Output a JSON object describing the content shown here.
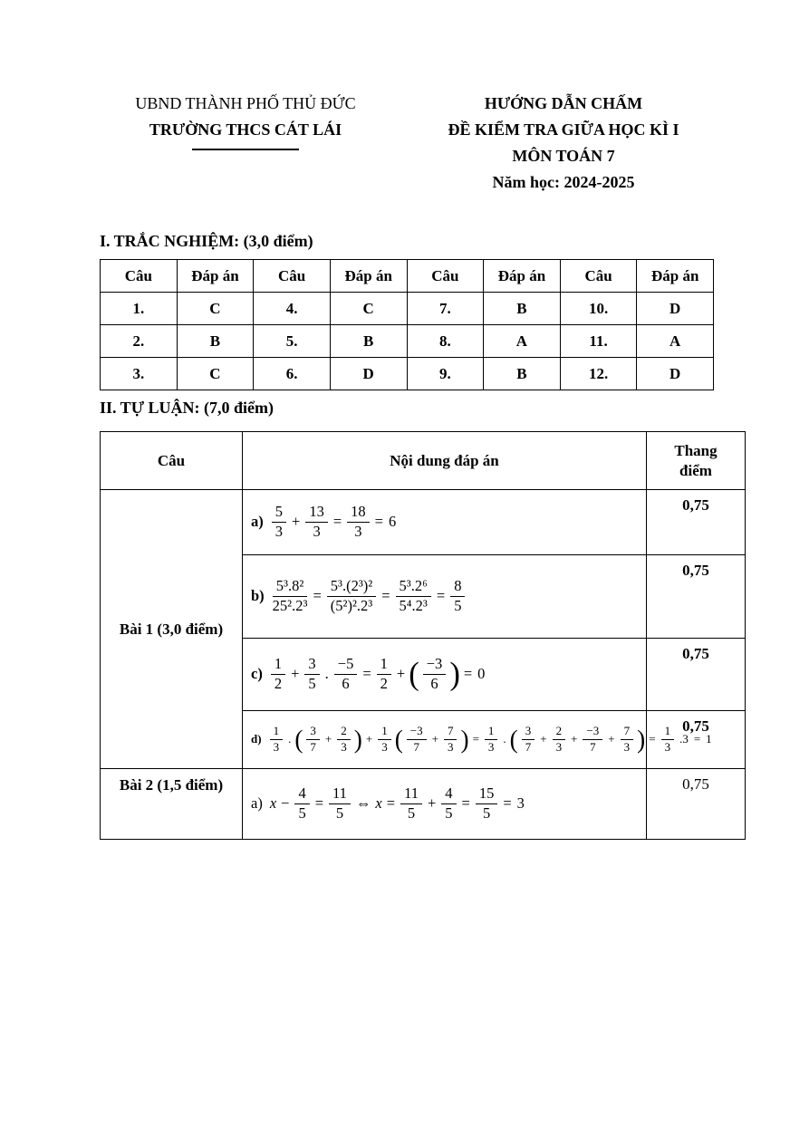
{
  "header": {
    "left": {
      "authority": "UBND THÀNH PHỐ THỦ ĐỨC",
      "school": "TRƯỜNG THCS CÁT LÁI"
    },
    "right": {
      "title": "HƯỚNG DẪN CHẤM",
      "subtitle": "ĐỀ KIỂM TRA GIỮA HỌC KÌ I",
      "subject": "MÔN TOÁN 7",
      "year": "Năm học: 2024-2025"
    }
  },
  "multiple_choice": {
    "heading": "I. TRẮC NGHIỆM: (3,0 điểm)",
    "header_row": [
      "Câu",
      "Đáp án",
      "Câu",
      "Đáp án",
      "Câu",
      "Đáp án",
      "Câu",
      "Đáp án"
    ],
    "rows": [
      [
        "1.",
        "C",
        "4.",
        "C",
        "7.",
        "B",
        "10.",
        "D"
      ],
      [
        "2.",
        "B",
        "5.",
        "B",
        "8.",
        "A",
        "11.",
        "A"
      ],
      [
        "3.",
        "C",
        "6.",
        "D",
        "9.",
        "B",
        "12.",
        "D"
      ]
    ]
  },
  "essay": {
    "heading": "II. TỰ LUẬN: (7,0 điểm)",
    "columns": {
      "question": "Câu",
      "content": "Nội dung đáp án",
      "score": "Thang điểm"
    },
    "groups": [
      {
        "title": "Bài 1 (3,0 điểm)",
        "rows": [
          {
            "label": "a)",
            "label_bold": true,
            "score": "0,75",
            "score_bold": true,
            "tokens": [
              {
                "t": "frac",
                "n": "5",
                "d": "3"
              },
              {
                "t": "txt",
                "v": "+"
              },
              {
                "t": "frac",
                "n": "13",
                "d": "3"
              },
              {
                "t": "txt",
                "v": "="
              },
              {
                "t": "frac",
                "n": "18",
                "d": "3"
              },
              {
                "t": "txt",
                "v": "="
              },
              {
                "t": "txt",
                "v": "6"
              }
            ]
          },
          {
            "label": "b)",
            "label_bold": true,
            "score": "0,75",
            "score_bold": true,
            "tokens": [
              {
                "t": "frac",
                "n": "5³.8²",
                "d": "25².2³"
              },
              {
                "t": "txt",
                "v": "="
              },
              {
                "t": "frac",
                "n": "5³.(2³)²",
                "d": "(5²)².2³"
              },
              {
                "t": "txt",
                "v": "="
              },
              {
                "t": "frac",
                "n": "5³.2⁶",
                "d": "5⁴.2³"
              },
              {
                "t": "txt",
                "v": "="
              },
              {
                "t": "frac",
                "n": "8",
                "d": "5"
              }
            ]
          },
          {
            "label": "c)",
            "label_bold": true,
            "score": "0,75",
            "score_bold": true,
            "tokens": [
              {
                "t": "frac",
                "n": "1",
                "d": "2"
              },
              {
                "t": "txt",
                "v": "+"
              },
              {
                "t": "frac",
                "n": "3",
                "d": "5"
              },
              {
                "t": "txt",
                "v": "."
              },
              {
                "t": "frac",
                "n": "−5",
                "d": "6"
              },
              {
                "t": "txt",
                "v": "="
              },
              {
                "t": "frac",
                "n": "1",
                "d": "2"
              },
              {
                "t": "txt",
                "v": "+"
              },
              {
                "t": "lp"
              },
              {
                "t": "frac",
                "n": "−3",
                "d": "6"
              },
              {
                "t": "rp"
              },
              {
                "t": "txt",
                "v": "="
              },
              {
                "t": "txt",
                "v": "0"
              }
            ]
          },
          {
            "label": "d)",
            "label_bold": true,
            "score": "0,75",
            "score_bold": true,
            "compact": true,
            "tokens": [
              {
                "t": "frac",
                "n": "1",
                "d": "3"
              },
              {
                "t": "txt",
                "v": "."
              },
              {
                "t": "lp"
              },
              {
                "t": "frac",
                "n": "3",
                "d": "7"
              },
              {
                "t": "txt",
                "v": "+"
              },
              {
                "t": "frac",
                "n": "2",
                "d": "3"
              },
              {
                "t": "rp"
              },
              {
                "t": "txt",
                "v": "+"
              },
              {
                "t": "frac",
                "n": "1",
                "d": "3"
              },
              {
                "t": "lp"
              },
              {
                "t": "frac",
                "n": "−3",
                "d": "7"
              },
              {
                "t": "txt",
                "v": "+"
              },
              {
                "t": "frac",
                "n": "7",
                "d": "3"
              },
              {
                "t": "rp"
              },
              {
                "t": "txt",
                "v": "="
              },
              {
                "t": "frac",
                "n": "1",
                "d": "3"
              },
              {
                "t": "txt",
                "v": "."
              },
              {
                "t": "lp"
              },
              {
                "t": "frac",
                "n": "3",
                "d": "7"
              },
              {
                "t": "txt",
                "v": "+"
              },
              {
                "t": "frac",
                "n": "2",
                "d": "3"
              },
              {
                "t": "txt",
                "v": "+"
              },
              {
                "t": "frac",
                "n": "−3",
                "d": "7"
              },
              {
                "t": "txt",
                "v": "+"
              },
              {
                "t": "frac",
                "n": "7",
                "d": "3"
              },
              {
                "t": "rp"
              },
              {
                "t": "txt",
                "v": "="
              },
              {
                "t": "frac",
                "n": "1",
                "d": "3"
              },
              {
                "t": "txt",
                "v": ".3"
              },
              {
                "t": "txt",
                "v": "="
              },
              {
                "t": "txt",
                "v": "1"
              }
            ]
          }
        ]
      },
      {
        "title": "Bài 2 (1,5 điểm)",
        "rows": [
          {
            "label": "a)",
            "label_bold": false,
            "score": "0,75",
            "score_bold": false,
            "tokens": [
              {
                "t": "var",
                "v": "x"
              },
              {
                "t": "txt",
                "v": "−"
              },
              {
                "t": "frac",
                "n": "4",
                "d": "5"
              },
              {
                "t": "txt",
                "v": "="
              },
              {
                "t": "frac",
                "n": "11",
                "d": "5"
              },
              {
                "t": "txt",
                "v": "⇔"
              },
              {
                "t": "var",
                "v": "x"
              },
              {
                "t": "txt",
                "v": "="
              },
              {
                "t": "frac",
                "n": "11",
                "d": "5"
              },
              {
                "t": "txt",
                "v": "+"
              },
              {
                "t": "frac",
                "n": "4",
                "d": "5"
              },
              {
                "t": "txt",
                "v": "="
              },
              {
                "t": "frac",
                "n": "15",
                "d": "5"
              },
              {
                "t": "txt",
                "v": "="
              },
              {
                "t": "txt",
                "v": "3"
              }
            ]
          }
        ]
      }
    ]
  }
}
